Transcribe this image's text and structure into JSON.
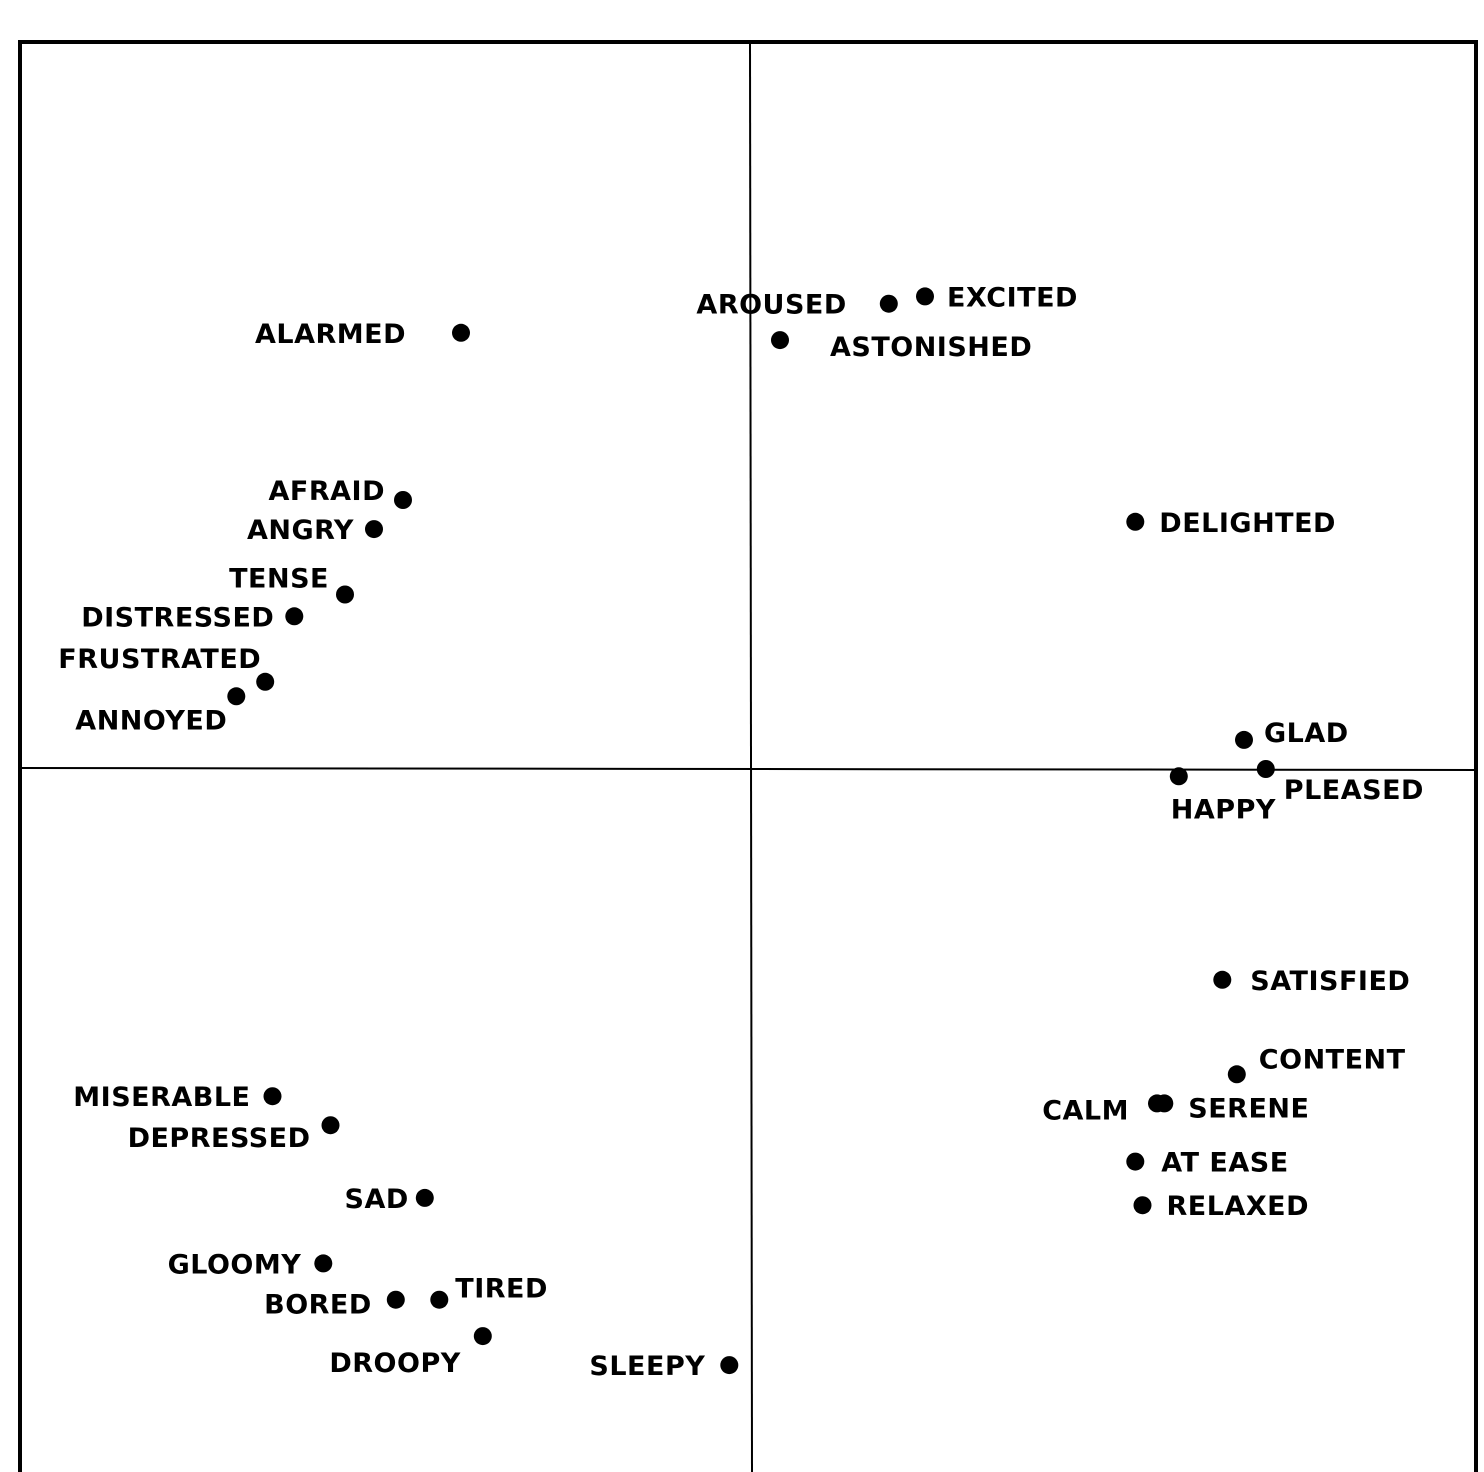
{
  "chart_data": {
    "type": "scatter",
    "title": "",
    "xlabel": "",
    "ylabel": "",
    "xlim": [
      -1,
      1
    ],
    "ylim": [
      -1,
      1
    ],
    "grid": false,
    "axes_through_origin": true,
    "marker_color": "#000000",
    "points": [
      {
        "label": "AROUSED",
        "x": 0.19,
        "y": 0.64
      },
      {
        "label": "EXCITED",
        "x": 0.24,
        "y": 0.65
      },
      {
        "label": "ASTONISHED",
        "x": 0.04,
        "y": 0.59
      },
      {
        "label": "ALARMED",
        "x": -0.4,
        "y": 0.6
      },
      {
        "label": "DELIGHTED",
        "x": 0.53,
        "y": 0.34
      },
      {
        "label": "AFRAID",
        "x": -0.48,
        "y": 0.37
      },
      {
        "label": "ANGRY",
        "x": -0.52,
        "y": 0.33
      },
      {
        "label": "TENSE",
        "x": -0.56,
        "y": 0.24
      },
      {
        "label": "DISTRESSED",
        "x": -0.63,
        "y": 0.21
      },
      {
        "label": "FRUSTRATED",
        "x": -0.67,
        "y": 0.12
      },
      {
        "label": "ANNOYED",
        "x": -0.71,
        "y": 0.1
      },
      {
        "label": "GLAD",
        "x": 0.68,
        "y": 0.04
      },
      {
        "label": "HAPPY",
        "x": 0.59,
        "y": -0.01
      },
      {
        "label": "PLEASED",
        "x": 0.71,
        "y": 0.0
      },
      {
        "label": "SATISFIED",
        "x": 0.65,
        "y": -0.29
      },
      {
        "label": "CONTENT",
        "x": 0.67,
        "y": -0.42
      },
      {
        "label": "CALM",
        "x": 0.56,
        "y": -0.46
      },
      {
        "label": "SERENE",
        "x": 0.57,
        "y": -0.46
      },
      {
        "label": "AT EASE",
        "x": 0.53,
        "y": -0.54
      },
      {
        "label": "RELAXED",
        "x": 0.54,
        "y": -0.6
      },
      {
        "label": "MISERABLE",
        "x": -0.66,
        "y": -0.45
      },
      {
        "label": "DEPRESSED",
        "x": -0.58,
        "y": -0.49
      },
      {
        "label": "SAD",
        "x": -0.45,
        "y": -0.59
      },
      {
        "label": "GLOOMY",
        "x": -0.59,
        "y": -0.68
      },
      {
        "label": "BORED",
        "x": -0.49,
        "y": -0.73
      },
      {
        "label": "TIRED",
        "x": -0.43,
        "y": -0.73
      },
      {
        "label": "DROOPY",
        "x": -0.37,
        "y": -0.78
      },
      {
        "label": "SLEEPY",
        "x": -0.03,
        "y": -0.82
      }
    ]
  }
}
